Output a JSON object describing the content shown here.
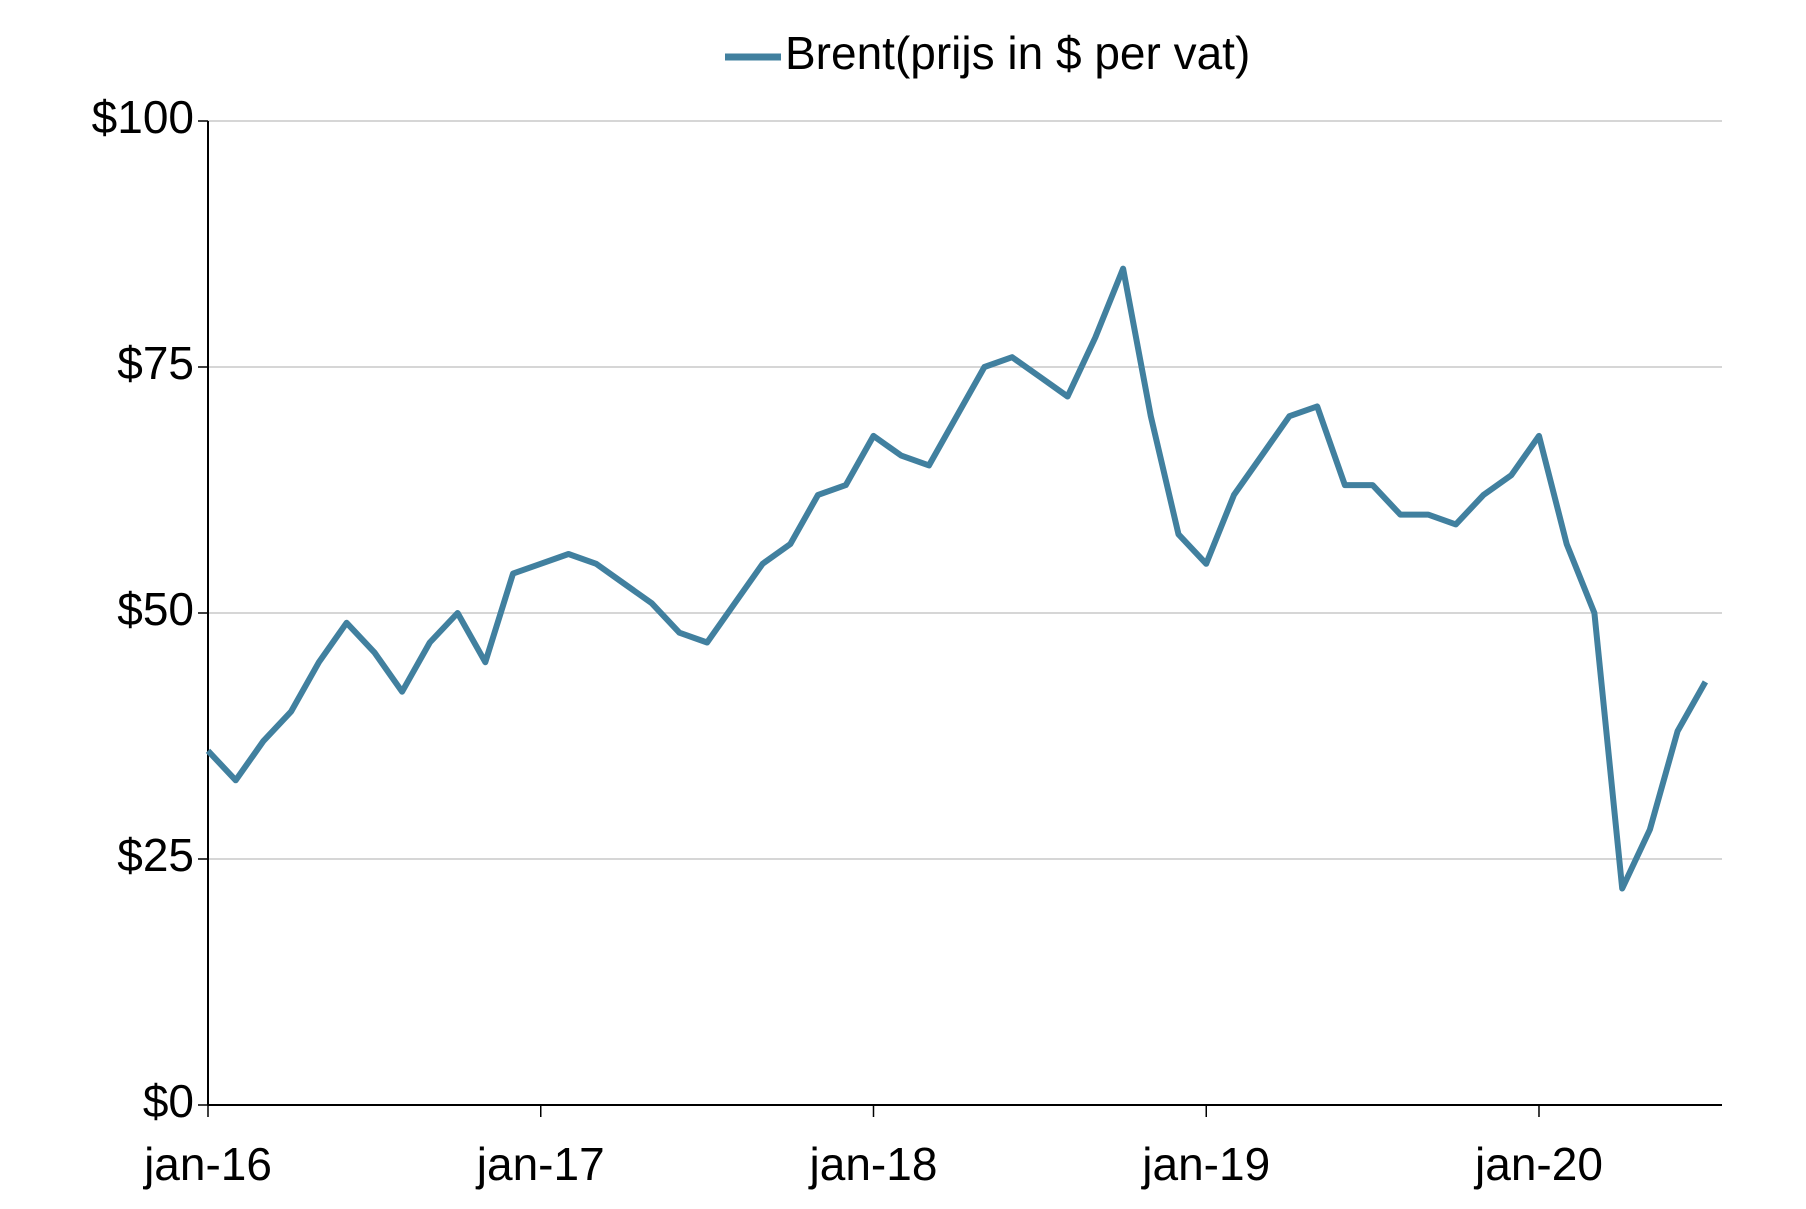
{
  "chart_data": {
    "type": "line",
    "x": [
      "2016-01",
      "2016-02",
      "2016-03",
      "2016-04",
      "2016-05",
      "2016-06",
      "2016-07",
      "2016-08",
      "2016-09",
      "2016-10",
      "2016-11",
      "2016-12",
      "2017-01",
      "2017-02",
      "2017-03",
      "2017-04",
      "2017-05",
      "2017-06",
      "2017-07",
      "2017-08",
      "2017-09",
      "2017-10",
      "2017-11",
      "2017-12",
      "2018-01",
      "2018-02",
      "2018-03",
      "2018-04",
      "2018-05",
      "2018-06",
      "2018-07",
      "2018-08",
      "2018-09",
      "2018-10",
      "2018-11",
      "2018-12",
      "2019-01",
      "2019-02",
      "2019-03",
      "2019-04",
      "2019-05",
      "2019-06",
      "2019-07",
      "2019-08",
      "2019-09",
      "2019-10",
      "2019-11",
      "2019-12",
      "2020-01",
      "2020-02",
      "2020-03",
      "2020-04",
      "2020-05",
      "2020-06",
      "2020-07"
    ],
    "series": [
      {
        "name": "Brent(prijs in $ per vat)",
        "color": "#41809f",
        "values": [
          36,
          33,
          37,
          40,
          45,
          49,
          46,
          42,
          47,
          50,
          45,
          54,
          55,
          56,
          55,
          53,
          51,
          48,
          47,
          51,
          55,
          57,
          62,
          63,
          68,
          66,
          65,
          70,
          75,
          76,
          74,
          72,
          78,
          85,
          70,
          58,
          55,
          62,
          66,
          70,
          71,
          63,
          63,
          60,
          60,
          59,
          62,
          64,
          68,
          57,
          50,
          22,
          28,
          38,
          43
        ]
      }
    ],
    "xlim": [
      "2016-01",
      "2020-07"
    ],
    "xticks": [
      {
        "value": "2016-01",
        "label": "jan-16"
      },
      {
        "value": "2017-01",
        "label": "jan-17"
      },
      {
        "value": "2018-01",
        "label": "jan-18"
      },
      {
        "value": "2019-01",
        "label": "jan-19"
      },
      {
        "value": "2020-01",
        "label": "jan-20"
      }
    ],
    "ylim": [
      0,
      100
    ],
    "yticks": [
      {
        "value": 0,
        "label": "$0"
      },
      {
        "value": 25,
        "label": "$25"
      },
      {
        "value": 50,
        "label": "$50"
      },
      {
        "value": 75,
        "label": "$75"
      },
      {
        "value": 100,
        "label": "$100"
      }
    ],
    "grid": true,
    "legend": "top"
  }
}
